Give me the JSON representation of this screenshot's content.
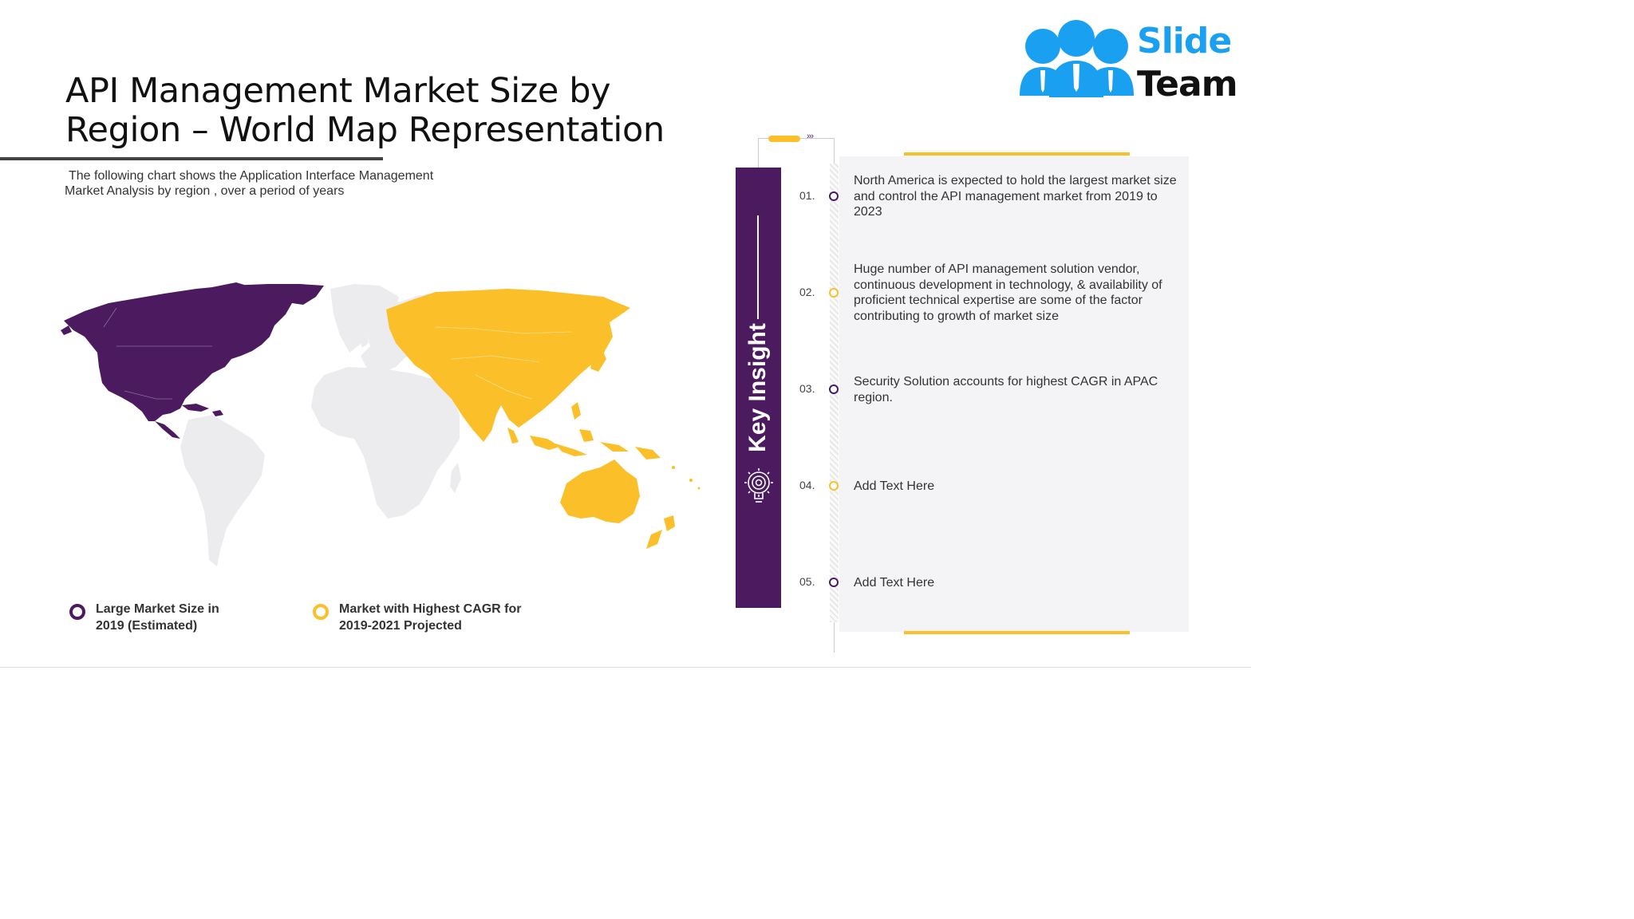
{
  "title": {
    "line1": "API Management Market Size by",
    "line2": "Region – World Map Representation"
  },
  "subtitle": {
    "line1": "The following chart shows the Application Interface Management",
    "line2": "Market Analysis by region , over a period of years"
  },
  "colors": {
    "purple": "#4b1a5f",
    "yellow": "#fbbf2a",
    "land_gray": "#ececef",
    "panel_bg": "#f4f3f6"
  },
  "logo": {
    "word1": "Slide",
    "word2": "Team"
  },
  "map": {
    "highlighted_regions": [
      {
        "region": "North America",
        "legend_ref": "purple"
      },
      {
        "region": "Asia Pacific",
        "legend_ref": "yellow"
      }
    ]
  },
  "legend": [
    {
      "line1": "Large Market Size in",
      "line2": "2019 (Estimated)",
      "color": "purple"
    },
    {
      "line1": "Market with Highest CAGR for",
      "line2": "2019-2021 Projected",
      "color": "yellow"
    }
  ],
  "key_insight": {
    "label": "Key Insight",
    "icon": "lightbulb-gear-icon",
    "items": [
      {
        "num": "01.",
        "text": "North America is expected to hold the largest market size and control the API management market from 2019 to 2023"
      },
      {
        "num": "02.",
        "text": "Huge number of API management solution vendor, continuous development in technology, & availability of proficient technical expertise are some of the factor contributing to growth of market size"
      },
      {
        "num": "03.",
        "text": "Security Solution accounts for highest CAGR in APAC region."
      },
      {
        "num": "04.",
        "text": "Add Text Here"
      },
      {
        "num": "05.",
        "text": "Add Text Here"
      }
    ]
  }
}
